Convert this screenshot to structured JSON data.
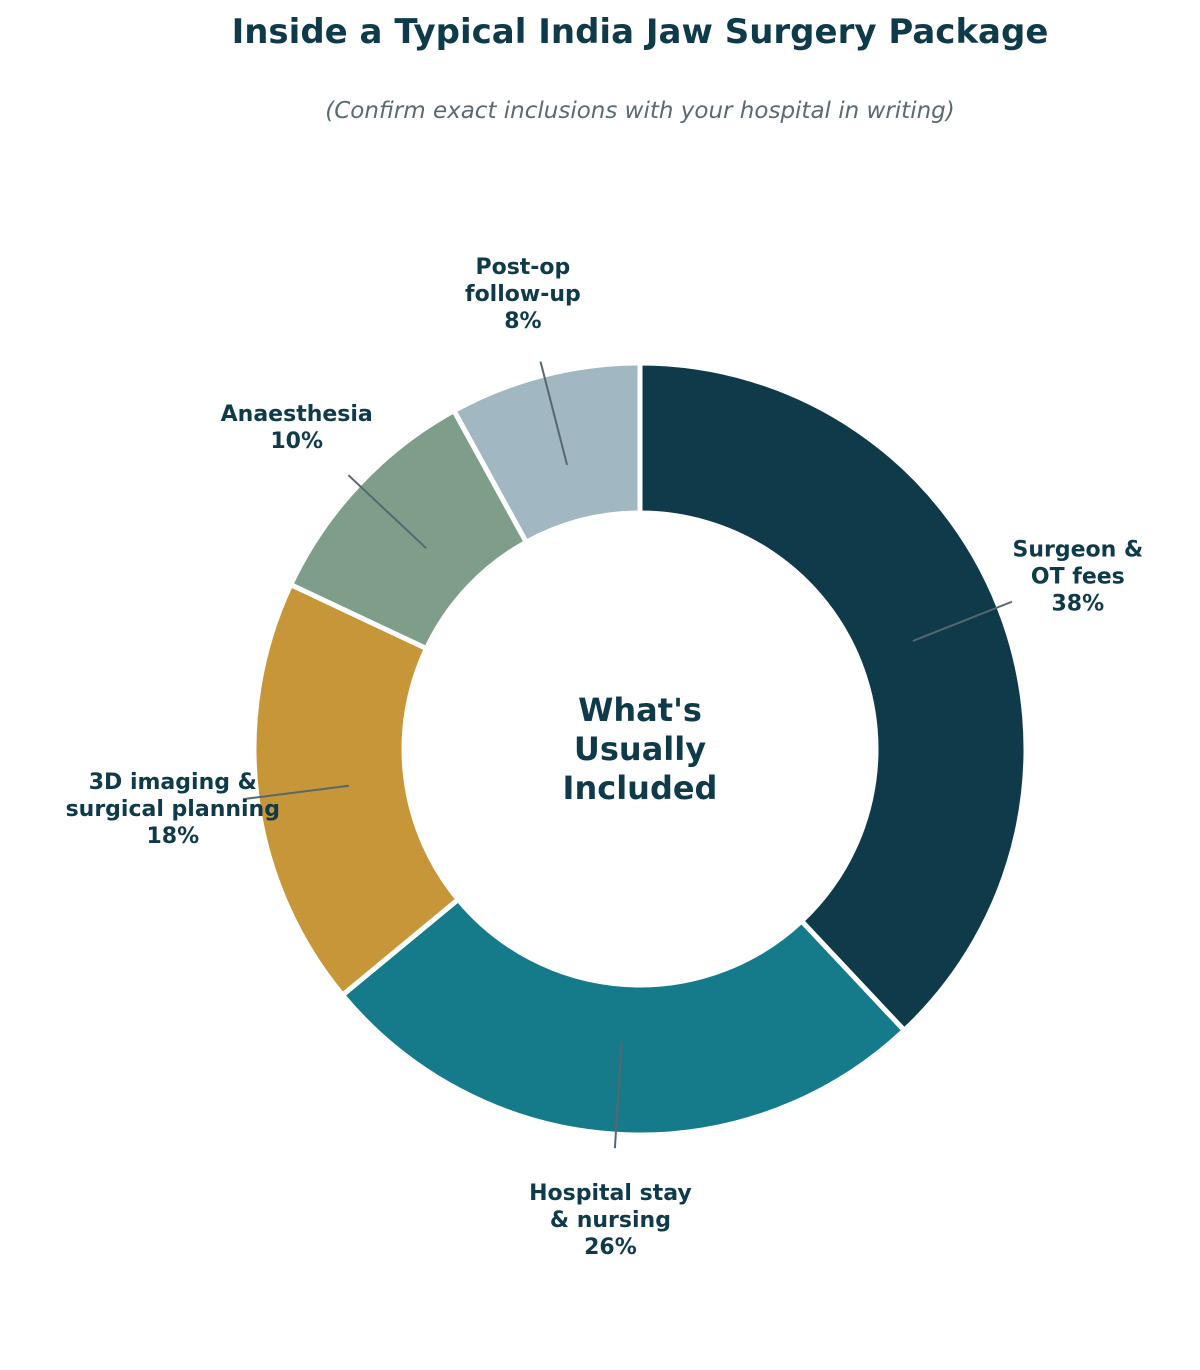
{
  "chart_data": {
    "type": "pie",
    "style": "donut",
    "title": "Inside a Typical India Jaw Surgery Package",
    "subtitle": "(Confirm exact inclusions with your hospital in writing)",
    "center_label": [
      "What's",
      "Usually",
      "Included"
    ],
    "slices": [
      {
        "label": [
          "Surgeon &",
          "OT fees"
        ],
        "value": 38,
        "display": "38%",
        "color": "#0f3a4a"
      },
      {
        "label": [
          "Hospital stay",
          "& nursing"
        ],
        "value": 26,
        "display": "26%",
        "color": "#157a8a"
      },
      {
        "label": [
          "3D imaging &",
          "surgical planning"
        ],
        "value": 18,
        "display": "18%",
        "color": "#c79638"
      },
      {
        "label": [
          "Anaesthesia"
        ],
        "value": 10,
        "display": "10%",
        "color": "#7f9e8a"
      },
      {
        "label": [
          "Post-op",
          "follow-up"
        ],
        "value": 8,
        "display": "8%",
        "color": "#a1b7c1"
      }
    ],
    "start": "top",
    "direction": "clockwise"
  }
}
